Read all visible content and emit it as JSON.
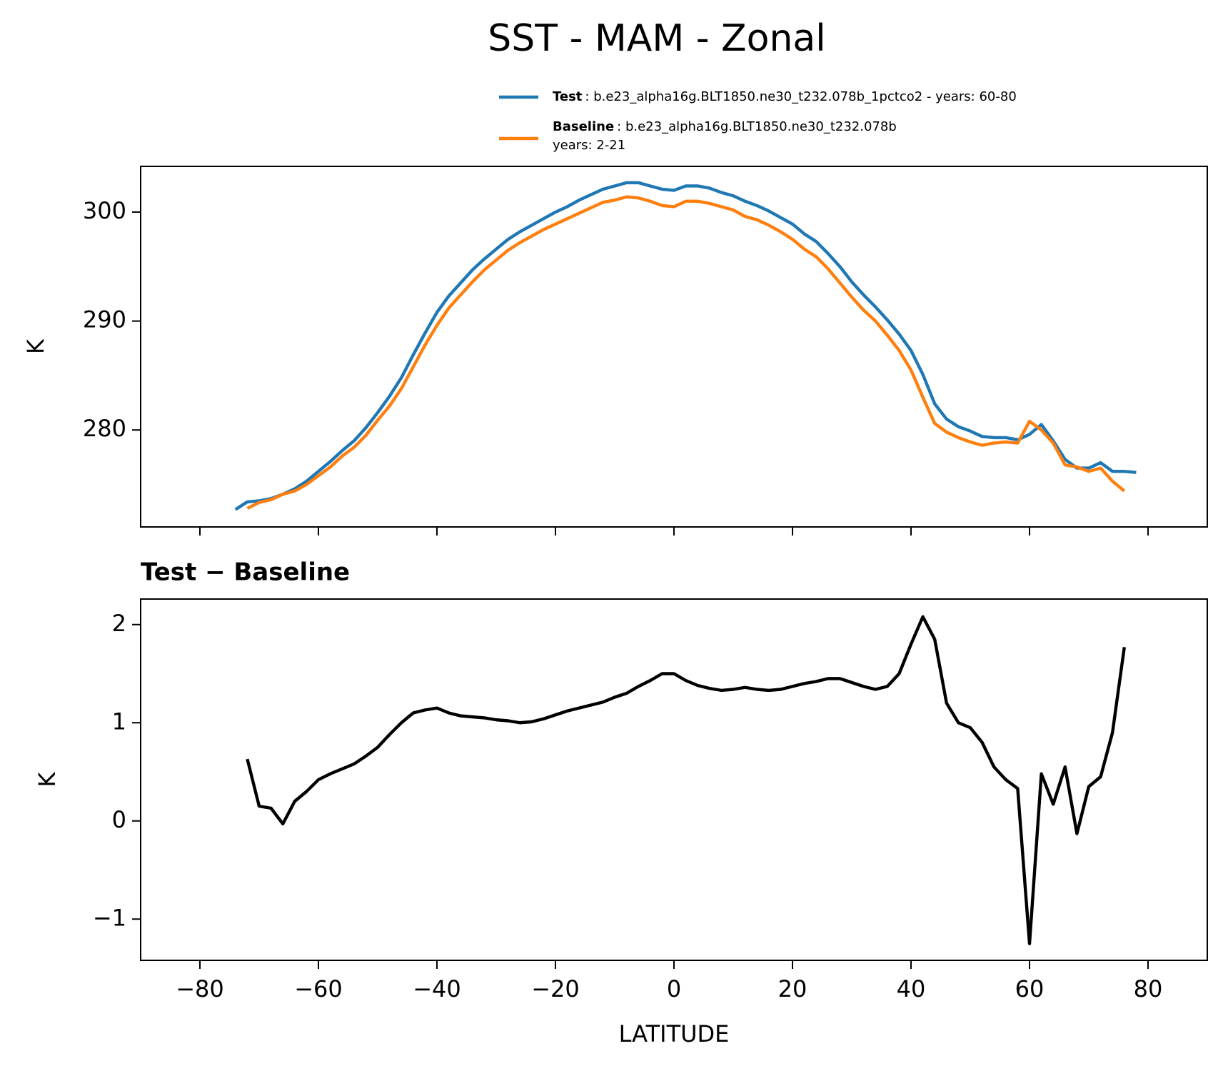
{
  "chart_data": [
    {
      "type": "line",
      "title": "SST - MAM - Zonal",
      "ylabel": "K",
      "x": [
        -74,
        -72,
        -70,
        -68,
        -66,
        -64,
        -62,
        -60,
        -58,
        -56,
        -54,
        -52,
        -50,
        -48,
        -46,
        -44,
        -42,
        -40,
        -38,
        -36,
        -34,
        -32,
        -30,
        -28,
        -26,
        -24,
        -22,
        -20,
        -18,
        -16,
        -14,
        -12,
        -10,
        -8,
        -6,
        -4,
        -2,
        0,
        2,
        4,
        6,
        8,
        10,
        12,
        14,
        16,
        18,
        20,
        22,
        24,
        26,
        28,
        30,
        32,
        34,
        36,
        38,
        40,
        42,
        44,
        46,
        48,
        50,
        52,
        54,
        56,
        58,
        60,
        62,
        64,
        66,
        68,
        70,
        72,
        74,
        76,
        78
      ],
      "series": [
        {
          "name": "Test",
          "detail": [
            ": b.e23_alpha16g.BLT1850.ne30_t232.078b_1pctco2 - years: 60-80"
          ],
          "color": "#1f77b4",
          "values": [
            272.7,
            273.4,
            273.5,
            273.7,
            274.1,
            274.6,
            275.3,
            276.2,
            277.1,
            278.1,
            279.0,
            280.2,
            281.6,
            283.1,
            284.8,
            286.9,
            288.9,
            290.8,
            292.3,
            293.5,
            294.7,
            295.7,
            296.6,
            297.5,
            298.2,
            298.8,
            299.4,
            300.0,
            300.5,
            301.1,
            301.6,
            302.1,
            302.4,
            302.7,
            302.7,
            302.4,
            302.1,
            302.0,
            302.4,
            302.4,
            302.2,
            301.8,
            301.5,
            301.0,
            300.6,
            300.1,
            299.5,
            298.9,
            298.0,
            297.3,
            296.2,
            295.0,
            293.6,
            292.4,
            291.3,
            290.1,
            288.8,
            287.3,
            285.1,
            282.4,
            281.0,
            280.3,
            279.9,
            279.4,
            279.3,
            279.3,
            279.1,
            279.6,
            280.5,
            279.0,
            277.3,
            276.5,
            276.5,
            277.0,
            276.2,
            276.2,
            276.1
          ]
        },
        {
          "name": "Baseline",
          "detail": [
            ": b.e23_alpha16g.BLT1850.ne30_t232.078b",
            "years: 2-21"
          ],
          "color": "#ff7f0e",
          "values": [
            null,
            272.8,
            273.35,
            273.6,
            274.1,
            274.4,
            275.0,
            275.8,
            276.6,
            277.6,
            278.4,
            279.5,
            280.9,
            282.2,
            283.8,
            285.8,
            287.8,
            289.6,
            291.2,
            292.4,
            293.6,
            294.7,
            295.6,
            296.5,
            297.2,
            297.8,
            298.4,
            298.9,
            299.4,
            299.9,
            300.4,
            300.9,
            301.1,
            301.4,
            301.3,
            301.0,
            300.6,
            300.5,
            301.0,
            301.0,
            300.8,
            300.5,
            300.2,
            299.6,
            299.3,
            298.8,
            298.2,
            297.5,
            296.6,
            295.9,
            294.8,
            293.5,
            292.2,
            291.0,
            290.0,
            288.7,
            287.3,
            285.5,
            283.0,
            280.6,
            279.8,
            279.3,
            278.9,
            278.6,
            278.8,
            278.9,
            278.8,
            280.8,
            280.0,
            278.8,
            276.8,
            276.6,
            276.2,
            276.5,
            275.3,
            274.4,
            null
          ]
        }
      ],
      "xlim": [
        -90,
        90
      ],
      "ylim": [
        271.1,
        304.2
      ],
      "xticks": [
        -80,
        -60,
        -40,
        -20,
        0,
        20,
        40,
        60,
        80
      ],
      "yticks": [
        280,
        290,
        300
      ]
    },
    {
      "type": "line",
      "title": "Test − Baseline",
      "xlabel": "LATITUDE",
      "ylabel": "K",
      "x": [
        -74,
        -72,
        -70,
        -68,
        -66,
        -64,
        -62,
        -60,
        -58,
        -56,
        -54,
        -52,
        -50,
        -48,
        -46,
        -44,
        -42,
        -40,
        -38,
        -36,
        -34,
        -32,
        -30,
        -28,
        -26,
        -24,
        -22,
        -20,
        -18,
        -16,
        -14,
        -12,
        -10,
        -8,
        -6,
        -4,
        -2,
        0,
        2,
        4,
        6,
        8,
        10,
        12,
        14,
        16,
        18,
        20,
        22,
        24,
        26,
        28,
        30,
        32,
        34,
        36,
        38,
        40,
        42,
        44,
        46,
        48,
        50,
        52,
        54,
        56,
        58,
        60,
        62,
        64,
        66,
        68,
        70,
        72,
        74,
        76,
        78
      ],
      "series": [
        {
          "color": "#000000",
          "values": [
            null,
            0.63,
            0.15,
            0.13,
            -0.03,
            0.2,
            0.3,
            0.42,
            0.48,
            0.53,
            0.58,
            0.66,
            0.75,
            0.88,
            1.0,
            1.1,
            1.13,
            1.15,
            1.1,
            1.07,
            1.06,
            1.05,
            1.03,
            1.02,
            1.0,
            1.01,
            1.04,
            1.08,
            1.12,
            1.15,
            1.18,
            1.21,
            1.26,
            1.3,
            1.37,
            1.43,
            1.5,
            1.5,
            1.43,
            1.38,
            1.35,
            1.33,
            1.34,
            1.36,
            1.34,
            1.33,
            1.34,
            1.37,
            1.4,
            1.42,
            1.45,
            1.45,
            1.41,
            1.37,
            1.34,
            1.37,
            1.5,
            1.8,
            2.08,
            1.85,
            1.2,
            1.0,
            0.95,
            0.8,
            0.55,
            0.42,
            0.33,
            -1.25,
            0.48,
            0.17,
            0.55,
            -0.13,
            0.35,
            0.45,
            0.9,
            1.77,
            null
          ]
        }
      ],
      "xlim": [
        -90,
        90
      ],
      "ylim": [
        -1.42,
        2.26
      ],
      "xticks": [
        {
          "value": -80,
          "label": "−80"
        },
        {
          "value": -60,
          "label": "−60"
        },
        {
          "value": -40,
          "label": "−40"
        },
        {
          "value": -20,
          "label": "−20"
        },
        0,
        20,
        40,
        60,
        80
      ],
      "yticks": [
        {
          "value": -1,
          "label": "−1"
        },
        0,
        1,
        2
      ]
    }
  ]
}
